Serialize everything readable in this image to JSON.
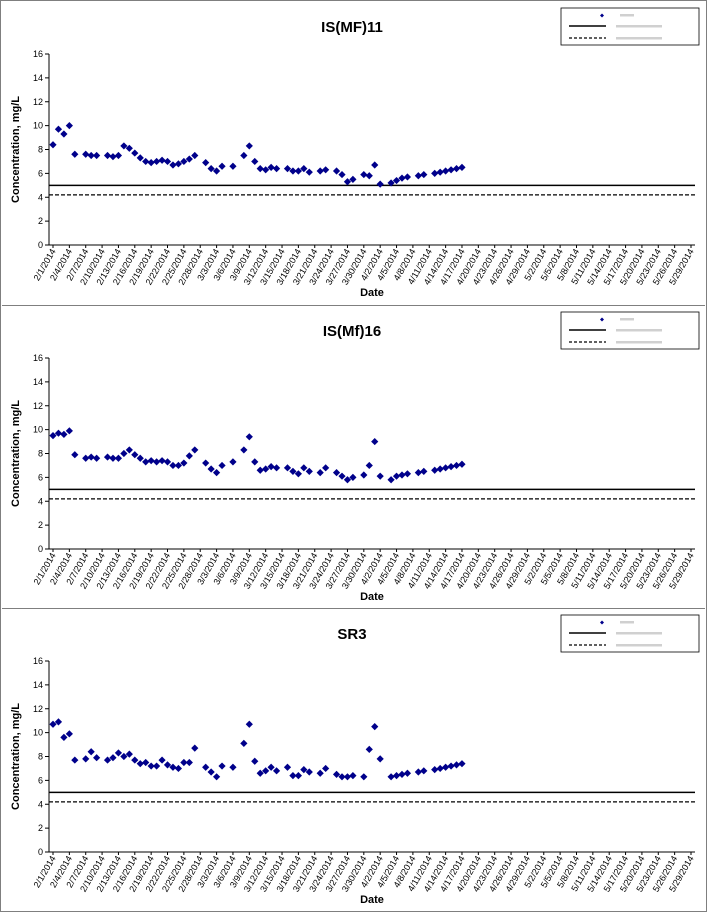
{
  "chart_data": [
    {
      "type": "scatter",
      "title": "IS(MF)11",
      "xlabel": "Date",
      "ylabel": "Concentration, mg/L",
      "ylim": [
        0,
        16
      ],
      "yticks": [
        0,
        2,
        4,
        6,
        8,
        10,
        12,
        14,
        16
      ],
      "grid": false,
      "legend_position": "top-right",
      "x_tick_labels": [
        "2/1/2014",
        "2/4/2014",
        "2/7/2014",
        "2/10/2014",
        "2/13/2014",
        "2/16/2014",
        "2/19/2014",
        "2/22/2014",
        "2/25/2014",
        "2/28/2014",
        "3/3/2014",
        "3/6/2014",
        "3/9/2014",
        "3/12/2014",
        "3/15/2014",
        "3/18/2014",
        "3/21/2014",
        "3/24/2014",
        "3/27/2014",
        "3/30/2014",
        "4/2/2014",
        "4/5/2014",
        "4/8/2014",
        "4/11/2014",
        "4/14/2014",
        "4/17/2014",
        "4/20/2014",
        "4/23/2014",
        "4/26/2014",
        "4/29/2014",
        "5/2/2014",
        "5/5/2014",
        "5/8/2014",
        "5/11/2014",
        "5/14/2014",
        "5/17/2014",
        "5/20/2014",
        "5/23/2014",
        "5/26/2014",
        "5/29/2014"
      ],
      "series": [
        {
          "marker": "diamond",
          "color": "#00008b",
          "x": [
            "2/1/2014",
            "2/2/2014",
            "2/3/2014",
            "2/4/2014",
            "2/5/2014",
            "2/7/2014",
            "2/8/2014",
            "2/9/2014",
            "2/11/2014",
            "2/12/2014",
            "2/13/2014",
            "2/14/2014",
            "2/15/2014",
            "2/16/2014",
            "2/17/2014",
            "2/18/2014",
            "2/19/2014",
            "2/20/2014",
            "2/21/2014",
            "2/22/2014",
            "2/23/2014",
            "2/24/2014",
            "2/25/2014",
            "2/26/2014",
            "2/27/2014",
            "3/1/2014",
            "3/2/2014",
            "3/3/2014",
            "3/4/2014",
            "3/6/2014",
            "3/8/2014",
            "3/9/2014",
            "3/10/2014",
            "3/11/2014",
            "3/12/2014",
            "3/13/2014",
            "3/14/2014",
            "3/16/2014",
            "3/17/2014",
            "3/18/2014",
            "3/19/2014",
            "3/20/2014",
            "3/22/2014",
            "3/23/2014",
            "3/25/2014",
            "3/26/2014",
            "3/27/2014",
            "3/28/2014",
            "3/30/2014",
            "3/31/2014",
            "4/1/2014",
            "4/2/2014",
            "4/4/2014",
            "4/5/2014",
            "4/6/2014",
            "4/7/2014",
            "4/9/2014",
            "4/10/2014",
            "4/12/2014",
            "4/13/2014",
            "4/14/2014",
            "4/15/2014",
            "4/16/2014",
            "4/17/2014"
          ],
          "y": [
            8.4,
            9.7,
            9.3,
            10.0,
            7.6,
            7.6,
            7.5,
            7.5,
            7.5,
            7.4,
            7.5,
            8.3,
            8.1,
            7.7,
            7.3,
            7.0,
            6.9,
            7.0,
            7.1,
            7.0,
            6.7,
            6.8,
            7.0,
            7.2,
            7.5,
            6.9,
            6.4,
            6.2,
            6.6,
            6.6,
            7.5,
            8.3,
            7.0,
            6.4,
            6.3,
            6.5,
            6.4,
            6.4,
            6.2,
            6.2,
            6.4,
            6.1,
            6.2,
            6.3,
            6.2,
            5.9,
            5.3,
            5.5,
            5.9,
            5.8,
            6.7,
            5.1,
            5.2,
            5.4,
            5.6,
            5.7,
            5.8,
            5.9,
            6.0,
            6.1,
            6.2,
            6.3,
            6.4,
            6.5
          ]
        },
        {
          "line_value": 5.0,
          "style": "solid",
          "color": "#000000"
        },
        {
          "line_value": 4.2,
          "style": "dashed",
          "color": "#000000"
        }
      ]
    },
    {
      "type": "scatter",
      "title": "IS(Mf)16",
      "xlabel": "Date",
      "ylabel": "Concentration, mg/L",
      "ylim": [
        0,
        16
      ],
      "yticks": [
        0,
        2,
        4,
        6,
        8,
        10,
        12,
        14,
        16
      ],
      "grid": false,
      "legend_position": "top-right",
      "x_tick_labels": [
        "2/1/2014",
        "2/4/2014",
        "2/7/2014",
        "2/10/2014",
        "2/13/2014",
        "2/16/2014",
        "2/19/2014",
        "2/22/2014",
        "2/25/2014",
        "2/28/2014",
        "3/3/2014",
        "3/6/2014",
        "3/9/2014",
        "3/12/2014",
        "3/15/2014",
        "3/18/2014",
        "3/21/2014",
        "3/24/2014",
        "3/27/2014",
        "3/30/2014",
        "4/2/2014",
        "4/5/2014",
        "4/8/2014",
        "4/11/2014",
        "4/14/2014",
        "4/17/2014",
        "4/20/2014",
        "4/23/2014",
        "4/26/2014",
        "4/29/2014",
        "5/2/2014",
        "5/5/2014",
        "5/8/2014",
        "5/11/2014",
        "5/14/2014",
        "5/17/2014",
        "5/20/2014",
        "5/23/2014",
        "5/26/2014",
        "5/29/2014"
      ],
      "series": [
        {
          "marker": "diamond",
          "color": "#00008b",
          "x": [
            "2/1/2014",
            "2/2/2014",
            "2/3/2014",
            "2/4/2014",
            "2/5/2014",
            "2/7/2014",
            "2/8/2014",
            "2/9/2014",
            "2/11/2014",
            "2/12/2014",
            "2/13/2014",
            "2/14/2014",
            "2/15/2014",
            "2/16/2014",
            "2/17/2014",
            "2/18/2014",
            "2/19/2014",
            "2/20/2014",
            "2/21/2014",
            "2/22/2014",
            "2/23/2014",
            "2/24/2014",
            "2/25/2014",
            "2/26/2014",
            "2/27/2014",
            "3/1/2014",
            "3/2/2014",
            "3/3/2014",
            "3/4/2014",
            "3/6/2014",
            "3/8/2014",
            "3/9/2014",
            "3/10/2014",
            "3/11/2014",
            "3/12/2014",
            "3/13/2014",
            "3/14/2014",
            "3/16/2014",
            "3/17/2014",
            "3/18/2014",
            "3/19/2014",
            "3/20/2014",
            "3/22/2014",
            "3/23/2014",
            "3/25/2014",
            "3/26/2014",
            "3/27/2014",
            "3/28/2014",
            "3/30/2014",
            "3/31/2014",
            "4/1/2014",
            "4/2/2014",
            "4/4/2014",
            "4/5/2014",
            "4/6/2014",
            "4/7/2014",
            "4/9/2014",
            "4/10/2014",
            "4/12/2014",
            "4/13/2014",
            "4/14/2014",
            "4/15/2014",
            "4/16/2014",
            "4/17/2014"
          ],
          "y": [
            9.5,
            9.7,
            9.6,
            9.9,
            7.9,
            7.6,
            7.7,
            7.6,
            7.7,
            7.6,
            7.6,
            8.0,
            8.3,
            7.9,
            7.6,
            7.3,
            7.4,
            7.3,
            7.4,
            7.3,
            7.0,
            7.0,
            7.2,
            7.8,
            8.3,
            7.2,
            6.7,
            6.4,
            7.0,
            7.3,
            8.3,
            9.4,
            7.3,
            6.6,
            6.7,
            6.9,
            6.8,
            6.8,
            6.5,
            6.3,
            6.8,
            6.5,
            6.4,
            6.8,
            6.4,
            6.1,
            5.8,
            6.0,
            6.2,
            7.0,
            9.0,
            6.1,
            5.8,
            6.1,
            6.2,
            6.3,
            6.4,
            6.5,
            6.6,
            6.7,
            6.8,
            6.9,
            7.0,
            7.1
          ]
        },
        {
          "line_value": 5.0,
          "style": "solid",
          "color": "#000000"
        },
        {
          "line_value": 4.2,
          "style": "dashed",
          "color": "#000000"
        }
      ]
    },
    {
      "type": "scatter",
      "title": "SR3",
      "xlabel": "Date",
      "ylabel": "Concentration, mg/L",
      "ylim": [
        0,
        16
      ],
      "yticks": [
        0,
        2,
        4,
        6,
        8,
        10,
        12,
        14,
        16
      ],
      "grid": false,
      "legend_position": "top-right",
      "x_tick_labels": [
        "2/1/2014",
        "2/4/2014",
        "2/7/2014",
        "2/10/2014",
        "2/13/2014",
        "2/16/2014",
        "2/19/2014",
        "2/22/2014",
        "2/25/2014",
        "2/28/2014",
        "3/3/2014",
        "3/6/2014",
        "3/9/2014",
        "3/12/2014",
        "3/15/2014",
        "3/18/2014",
        "3/21/2014",
        "3/24/2014",
        "3/27/2014",
        "3/30/2014",
        "4/2/2014",
        "4/5/2014",
        "4/8/2014",
        "4/11/2014",
        "4/14/2014",
        "4/17/2014",
        "4/20/2014",
        "4/23/2014",
        "4/26/2014",
        "4/29/2014",
        "5/2/2014",
        "5/5/2014",
        "5/8/2014",
        "5/11/2014",
        "5/14/2014",
        "5/17/2014",
        "5/20/2014",
        "5/23/2014",
        "5/26/2014",
        "5/29/2014"
      ],
      "series": [
        {
          "marker": "diamond",
          "color": "#00008b",
          "x": [
            "2/1/2014",
            "2/2/2014",
            "2/3/2014",
            "2/4/2014",
            "2/5/2014",
            "2/7/2014",
            "2/8/2014",
            "2/9/2014",
            "2/11/2014",
            "2/12/2014",
            "2/13/2014",
            "2/14/2014",
            "2/15/2014",
            "2/16/2014",
            "2/17/2014",
            "2/18/2014",
            "2/19/2014",
            "2/20/2014",
            "2/21/2014",
            "2/22/2014",
            "2/23/2014",
            "2/24/2014",
            "2/25/2014",
            "2/26/2014",
            "2/27/2014",
            "3/1/2014",
            "3/2/2014",
            "3/3/2014",
            "3/4/2014",
            "3/6/2014",
            "3/8/2014",
            "3/9/2014",
            "3/10/2014",
            "3/11/2014",
            "3/12/2014",
            "3/13/2014",
            "3/14/2014",
            "3/16/2014",
            "3/17/2014",
            "3/18/2014",
            "3/19/2014",
            "3/20/2014",
            "3/22/2014",
            "3/23/2014",
            "3/25/2014",
            "3/26/2014",
            "3/27/2014",
            "3/28/2014",
            "3/30/2014",
            "3/31/2014",
            "4/1/2014",
            "4/2/2014",
            "4/4/2014",
            "4/5/2014",
            "4/6/2014",
            "4/7/2014",
            "4/9/2014",
            "4/10/2014",
            "4/12/2014",
            "4/13/2014",
            "4/14/2014",
            "4/15/2014",
            "4/16/2014",
            "4/17/2014"
          ],
          "y": [
            10.7,
            10.9,
            9.6,
            9.9,
            7.7,
            7.8,
            8.4,
            7.9,
            7.7,
            7.9,
            8.3,
            8.0,
            8.2,
            7.7,
            7.4,
            7.5,
            7.2,
            7.2,
            7.7,
            7.3,
            7.1,
            7.0,
            7.5,
            7.5,
            8.7,
            7.1,
            6.7,
            6.3,
            7.2,
            7.1,
            9.1,
            10.7,
            7.6,
            6.6,
            6.8,
            7.1,
            6.8,
            7.1,
            6.4,
            6.4,
            6.9,
            6.7,
            6.6,
            7.0,
            6.5,
            6.3,
            6.3,
            6.4,
            6.3,
            8.6,
            10.5,
            7.8,
            6.3,
            6.4,
            6.5,
            6.6,
            6.7,
            6.8,
            6.9,
            7.0,
            7.1,
            7.2,
            7.3,
            7.4
          ]
        },
        {
          "line_value": 5.0,
          "style": "solid",
          "color": "#000000"
        },
        {
          "line_value": 4.2,
          "style": "dashed",
          "color": "#000000"
        }
      ]
    }
  ]
}
